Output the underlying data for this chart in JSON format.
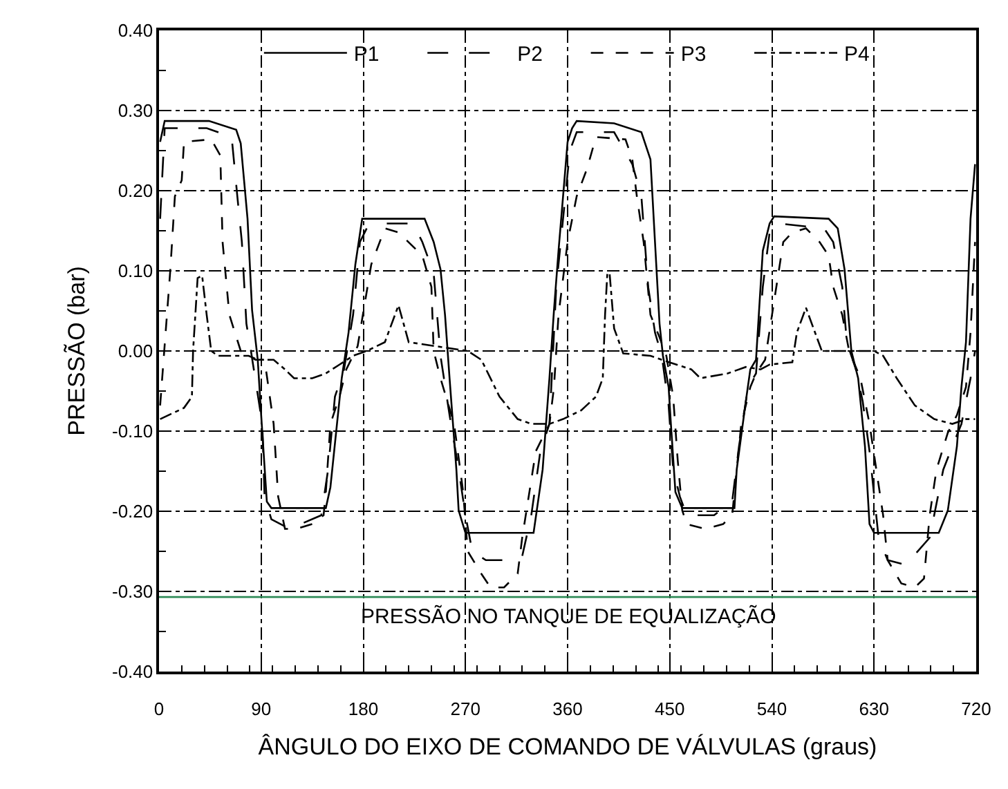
{
  "chart_data": {
    "type": "line",
    "xlabel": "ÂNGULO DO EIXO DE COMANDO DE VÁLVULAS (graus)",
    "ylabel": "PRESSÃO (bar)",
    "xlim": [
      0,
      720
    ],
    "xticks": [
      0,
      90,
      180,
      270,
      360,
      450,
      540,
      630,
      720
    ],
    "ylim": [
      -0.4,
      0.4
    ],
    "yticks": [
      {
        "value": -0.4,
        "label": "-0.40"
      },
      {
        "value": -0.3,
        "label": "-0.30"
      },
      {
        "value": -0.2,
        "label": "-0.20"
      },
      {
        "value": -0.1,
        "label": "-0.10"
      },
      {
        "value": 0,
        "label": "0.00"
      },
      {
        "value": 0.1,
        "label": "0.10"
      },
      {
        "value": 0.2,
        "label": "0.20"
      },
      {
        "value": 0.3,
        "label": "0.30"
      },
      {
        "value": 0.4,
        "label": "0.40"
      }
    ],
    "grid": true,
    "legend": "top",
    "marker": "none",
    "ref_lines": [
      {
        "axis": "y",
        "value": -0.307,
        "label": "PRESSÃO NO TANQUE DE EQUALIZAÇÃO",
        "color": "#2e8b57"
      }
    ],
    "series": [
      {
        "name": "P1",
        "color": "#000000",
        "line_style": "solid",
        "x": [
          1,
          5,
          44,
          68,
          72,
          78,
          82,
          87,
          90,
          95,
          99,
          147,
          151,
          161,
          167,
          173,
          179,
          224,
          234,
          242,
          248,
          252,
          256,
          262,
          264,
          270,
          330,
          338,
          344,
          348,
          352,
          356,
          360,
          364,
          368,
          401,
          425,
          433,
          437,
          441,
          444,
          449,
          451,
          455,
          461,
          507,
          509,
          517,
          521,
          526,
          530,
          532,
          538,
          542,
          590,
          598,
          604,
          610,
          616,
          622,
          626,
          630,
          687,
          695,
          703,
          707,
          711,
          715,
          719
        ],
        "values": [
          0.261,
          0.287,
          0.287,
          0.276,
          0.259,
          0.165,
          0.051,
          -0.011,
          -0.08,
          -0.188,
          -0.196,
          -0.196,
          -0.17,
          -0.034,
          0.023,
          0.108,
          0.165,
          0.165,
          0.165,
          0.136,
          0.102,
          0.045,
          -0.034,
          -0.148,
          -0.199,
          -0.227,
          -0.227,
          -0.148,
          -0.034,
          0.051,
          0.125,
          0.193,
          0.261,
          0.278,
          0.287,
          0.284,
          0.273,
          0.239,
          0.136,
          0.034,
          -0.006,
          -0.045,
          -0.091,
          -0.176,
          -0.196,
          -0.196,
          -0.148,
          -0.063,
          -0.023,
          -0.011,
          0.08,
          0.125,
          0.159,
          0.168,
          0.165,
          0.153,
          0.102,
          0.0,
          -0.034,
          -0.119,
          -0.216,
          -0.227,
          -0.227,
          -0.199,
          -0.119,
          -0.045,
          0.011,
          0.165,
          0.233
        ]
      },
      {
        "name": "P2",
        "color": "#000000",
        "line_style": "dashed",
        "x": [
          1,
          5,
          42,
          64,
          69,
          73,
          77,
          81,
          91,
          93,
          99,
          115,
          143,
          149,
          155,
          163,
          171,
          177,
          183,
          199,
          224,
          232,
          242,
          248,
          256,
          264,
          270,
          276,
          288,
          304,
          320,
          328,
          336,
          344,
          350,
          356,
          362,
          368,
          401,
          417,
          425,
          431,
          437,
          443,
          449,
          453,
          459,
          465,
          489,
          505,
          511,
          519,
          526,
          532,
          538,
          546,
          586,
          594,
          602,
          606,
          614,
          620,
          626,
          634,
          642,
          658,
          679,
          691,
          699,
          707,
          715,
          719
        ],
        "values": [
          0.165,
          0.278,
          0.278,
          0.267,
          0.193,
          0.136,
          0.034,
          0.0,
          -0.091,
          -0.182,
          -0.21,
          -0.222,
          -0.205,
          -0.148,
          -0.057,
          -0.023,
          0.045,
          0.136,
          0.153,
          0.159,
          0.159,
          0.136,
          0.097,
          -0.006,
          -0.08,
          -0.148,
          -0.205,
          -0.25,
          -0.261,
          -0.261,
          -0.256,
          -0.205,
          -0.125,
          -0.091,
          0.08,
          0.165,
          0.25,
          0.273,
          0.273,
          0.233,
          0.193,
          0.08,
          0.023,
          -0.006,
          -0.068,
          -0.148,
          -0.182,
          -0.205,
          -0.205,
          -0.188,
          -0.119,
          -0.045,
          -0.028,
          0.08,
          0.148,
          0.159,
          0.153,
          0.136,
          0.08,
          0.011,
          -0.023,
          -0.063,
          -0.125,
          -0.233,
          -0.261,
          -0.267,
          -0.233,
          -0.148,
          -0.119,
          -0.091,
          -0.034,
          0.0
        ]
      },
      {
        "name": "P3",
        "color": "#000000",
        "line_style": "dashed",
        "x": [
          1,
          10,
          14,
          20,
          22,
          46,
          54,
          56,
          62,
          72,
          85,
          93,
          101,
          105,
          111,
          121,
          135,
          145,
          147,
          151,
          159,
          165,
          175,
          187,
          199,
          211,
          232,
          240,
          242,
          248,
          260,
          268,
          272,
          284,
          292,
          304,
          316,
          320,
          332,
          344,
          348,
          352,
          360,
          368,
          377,
          385,
          411,
          417,
          421,
          427,
          433,
          441,
          447,
          453,
          457,
          461,
          465,
          481,
          497,
          505,
          513,
          521,
          526,
          534,
          550,
          558,
          570,
          582,
          590,
          594,
          602,
          608,
          618,
          626,
          638,
          642,
          654,
          666,
          674,
          679,
          685,
          695,
          703,
          711,
          715,
          719
        ],
        "values": [
          -0.068,
          0.102,
          0.193,
          0.213,
          0.261,
          0.264,
          0.244,
          0.136,
          0.045,
          0.0,
          -0.011,
          -0.011,
          -0.091,
          -0.182,
          -0.222,
          -0.222,
          -0.216,
          -0.205,
          -0.176,
          -0.091,
          -0.057,
          -0.023,
          0.006,
          0.108,
          0.153,
          0.148,
          0.119,
          0.08,
          0.0,
          -0.034,
          -0.091,
          -0.176,
          -0.25,
          -0.278,
          -0.295,
          -0.295,
          -0.278,
          -0.233,
          -0.125,
          -0.091,
          -0.045,
          0.045,
          0.136,
          0.193,
          0.227,
          0.267,
          0.264,
          0.239,
          0.193,
          0.136,
          0.045,
          0.017,
          -0.006,
          -0.057,
          -0.136,
          -0.199,
          -0.216,
          -0.222,
          -0.216,
          -0.205,
          -0.091,
          -0.045,
          -0.028,
          -0.011,
          0.136,
          0.148,
          0.153,
          0.136,
          0.119,
          0.08,
          0.045,
          0.0,
          -0.034,
          -0.091,
          -0.205,
          -0.261,
          -0.29,
          -0.295,
          -0.284,
          -0.205,
          -0.148,
          -0.102,
          -0.08,
          -0.045,
          0.023,
          0.136
        ]
      },
      {
        "name": "P4",
        "color": "#000000",
        "line_style": "dotted",
        "x": [
          1,
          22,
          29,
          30,
          32,
          34,
          38,
          42,
          46,
          52,
          79,
          87,
          101,
          111,
          119,
          135,
          147,
          159,
          171,
          183,
          199,
          211,
          220,
          272,
          284,
          300,
          316,
          328,
          344,
          356,
          372,
          385,
          391,
          393,
          395,
          397,
          401,
          409,
          433,
          443,
          469,
          477,
          501,
          517,
          530,
          538,
          558,
          562,
          570,
          578,
          584,
          610,
          630,
          638,
          650,
          666,
          683,
          699,
          711,
          719
        ],
        "values": [
          -0.085,
          -0.071,
          -0.057,
          0.0,
          0.045,
          0.091,
          0.094,
          0.045,
          0.0,
          -0.006,
          -0.006,
          -0.011,
          -0.011,
          -0.023,
          -0.034,
          -0.034,
          -0.028,
          -0.017,
          -0.006,
          0.0,
          0.011,
          0.057,
          0.011,
          0.0,
          -0.011,
          -0.057,
          -0.085,
          -0.091,
          -0.091,
          -0.085,
          -0.074,
          -0.057,
          -0.034,
          0.045,
          0.097,
          0.097,
          0.028,
          -0.003,
          -0.006,
          -0.011,
          -0.023,
          -0.034,
          -0.028,
          -0.02,
          -0.023,
          -0.017,
          -0.014,
          0.023,
          0.054,
          0.023,
          0.0,
          0.0,
          0.0,
          -0.006,
          -0.034,
          -0.068,
          -0.085,
          -0.091,
          -0.085,
          -0.085
        ]
      }
    ]
  }
}
